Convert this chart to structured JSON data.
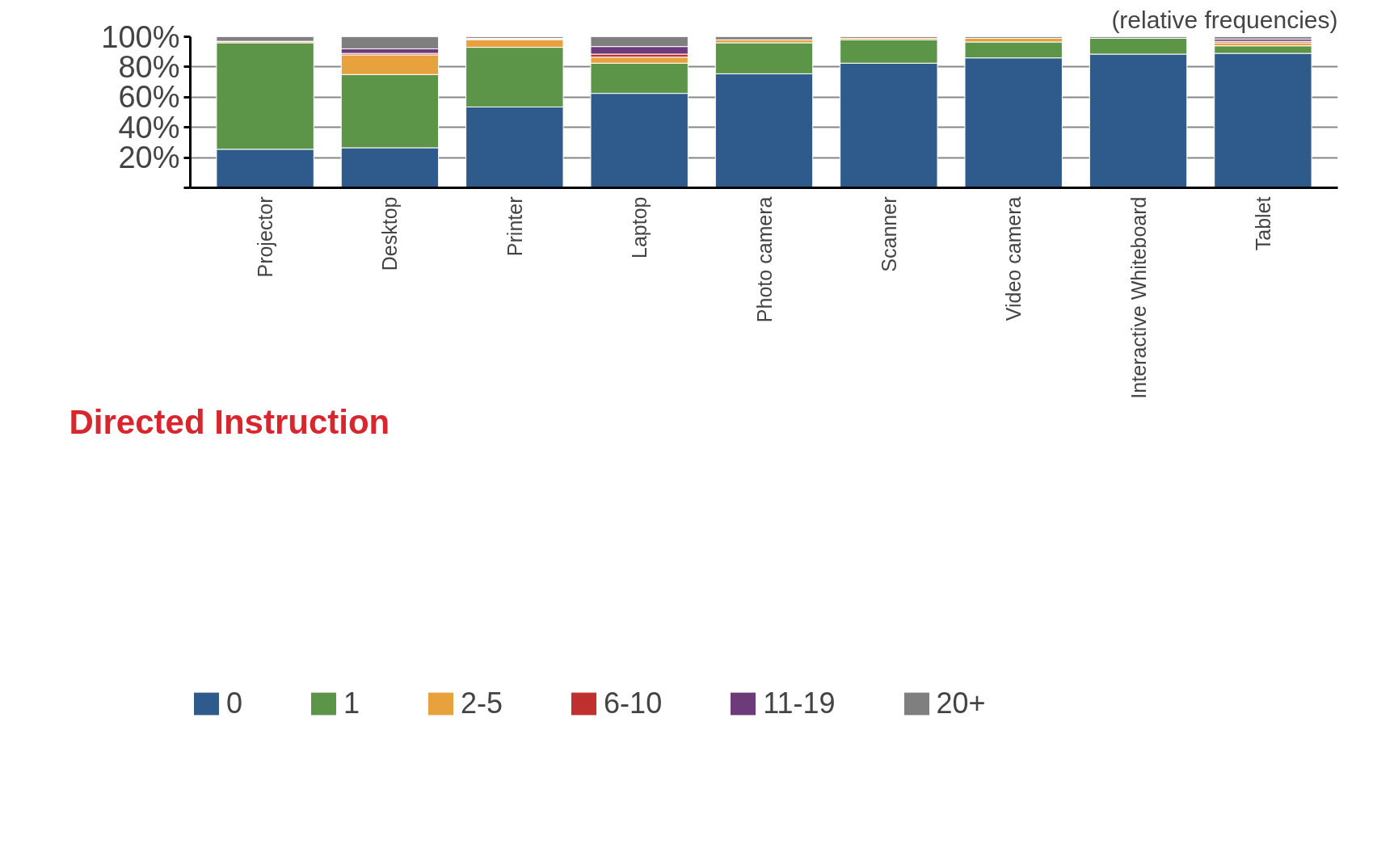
{
  "chart_data": {
    "type": "bar",
    "stacked": true,
    "title": "Directed Instruction",
    "annotations": [
      "(relative frequencies)"
    ],
    "categories": [
      "Projector",
      "Desktop",
      "Printer",
      "Laptop",
      "Photo camera",
      "Scanner",
      "Video camera",
      "Interactive Whiteboard",
      "Tablet"
    ],
    "series": [
      {
        "name": "0",
        "color": "#2e5a8c",
        "values": [
          25.5,
          26.5,
          53.5,
          62.5,
          75.5,
          82.5,
          86,
          88.5,
          89
        ]
      },
      {
        "name": "1",
        "color": "#5d9548",
        "values": [
          70.5,
          48.5,
          39.5,
          20,
          20.5,
          15.5,
          10.5,
          10.5,
          5
        ]
      },
      {
        "name": "2-5",
        "color": "#e7a23d",
        "values": [
          1,
          13,
          5,
          4,
          2,
          1,
          2.5,
          0,
          2
        ]
      },
      {
        "name": "6-10",
        "color": "#c0302f",
        "values": [
          0,
          1,
          0.5,
          2,
          0,
          0,
          0,
          0,
          1
        ]
      },
      {
        "name": "11-19",
        "color": "#6d3a7a",
        "values": [
          null,
          3,
          0.5,
          5,
          null,
          0,
          0,
          0,
          1.5
        ]
      },
      {
        "name": "20+",
        "color": "#7f7f7f",
        "values": [
          3,
          8,
          1,
          6.5,
          2,
          1,
          1,
          1,
          1.5
        ]
      }
    ],
    "ylim": [
      0,
      100
    ],
    "yticks": [
      {
        "value": 0,
        "label": null
      },
      {
        "value": 20,
        "label": "20%"
      },
      {
        "value": 40,
        "label": "40%"
      },
      {
        "value": 60,
        "label": "60%"
      },
      {
        "value": 80,
        "label": "80%"
      },
      {
        "value": 100,
        "label": "100%"
      }
    ],
    "grid": "y",
    "legend": "bottom"
  }
}
